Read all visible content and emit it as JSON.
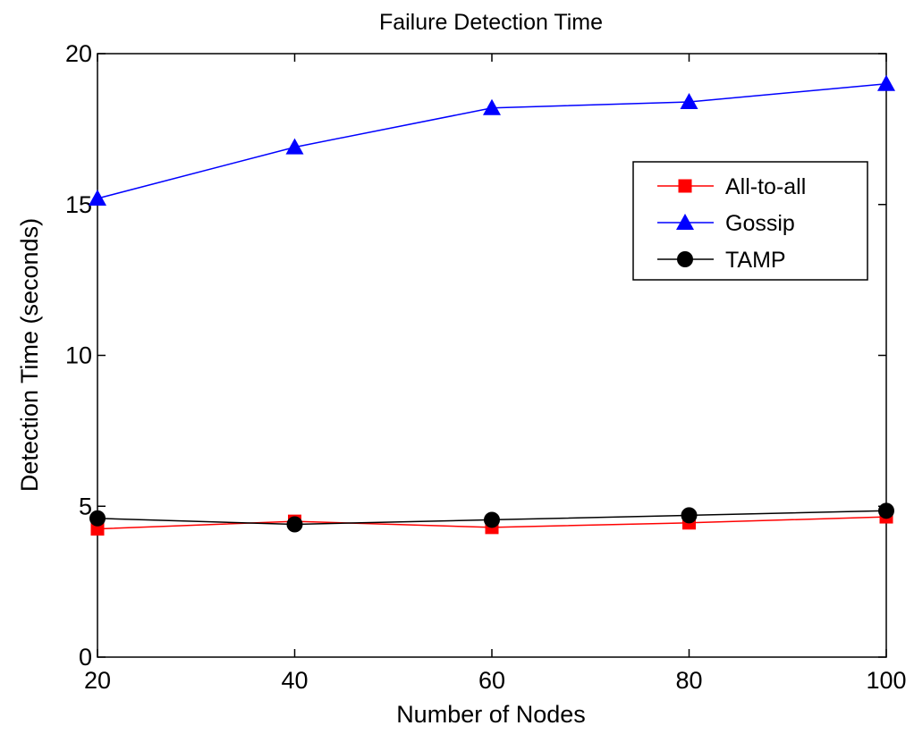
{
  "chart_data": {
    "type": "line",
    "title": "Failure Detection Time",
    "xlabel": "Number of Nodes",
    "ylabel": "Detection Time (seconds)",
    "x": [
      20,
      40,
      60,
      80,
      100
    ],
    "xlim": [
      20,
      100
    ],
    "ylim": [
      0,
      20
    ],
    "xticks": [
      "20",
      "40",
      "60",
      "80",
      "100"
    ],
    "yticks": [
      "0",
      "5",
      "10",
      "15",
      "20"
    ],
    "grid": false,
    "legend_position": "upper-right",
    "series": [
      {
        "name": "All-to-all",
        "color": "#ff0000",
        "marker": "square",
        "values": [
          4.25,
          4.5,
          4.3,
          4.45,
          4.65
        ]
      },
      {
        "name": "Gossip",
        "color": "#0000ff",
        "marker": "triangle",
        "values": [
          15.2,
          16.9,
          18.2,
          18.4,
          19.0
        ]
      },
      {
        "name": "TAMP",
        "color": "#000000",
        "marker": "circle",
        "values": [
          4.6,
          4.4,
          4.55,
          4.7,
          4.85
        ]
      }
    ]
  }
}
